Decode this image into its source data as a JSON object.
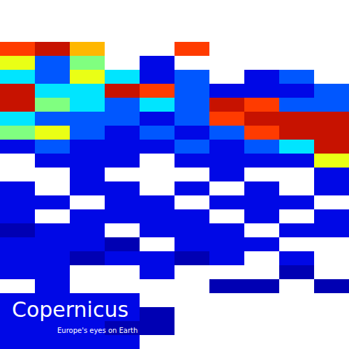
{
  "chart_data": {
    "type": "heatmap",
    "annotations": [
      "Copernicus",
      "Europe's eyes on Earth"
    ],
    "tick_labels": false,
    "zlim": [
      0,
      10
    ],
    "cells": [
      [
        null,
        null,
        null,
        null,
        null,
        null,
        null,
        null,
        null,
        null
      ],
      [
        null,
        null,
        null,
        null,
        null,
        null,
        null,
        null,
        null,
        null
      ],
      [
        null,
        null,
        null,
        null,
        null,
        null,
        null,
        null,
        null,
        null
      ],
      [
        8,
        9,
        7,
        null,
        null,
        8,
        null,
        null,
        null,
        null
      ],
      [
        6,
        3,
        5,
        null,
        2,
        null,
        null,
        null,
        null,
        null
      ],
      [
        4,
        3,
        6,
        4,
        2,
        3,
        null,
        2,
        3,
        null
      ],
      [
        9,
        4,
        4,
        9,
        8,
        3,
        2,
        2,
        2,
        3
      ],
      [
        9,
        5,
        4,
        3,
        4,
        3,
        9,
        8,
        3,
        3
      ],
      [
        4,
        3,
        3,
        3,
        2,
        3,
        8,
        9,
        9,
        9
      ],
      [
        5,
        6,
        3,
        2,
        3,
        2,
        3,
        8,
        9,
        9
      ],
      [
        2,
        3,
        2,
        2,
        2,
        3,
        2,
        3,
        4,
        9
      ],
      [
        null,
        2,
        2,
        2,
        null,
        2,
        2,
        2,
        2,
        6
      ],
      [
        null,
        null,
        2,
        null,
        null,
        null,
        2,
        null,
        null,
        2
      ],
      [
        2,
        null,
        2,
        2,
        null,
        2,
        null,
        2,
        null,
        2
      ],
      [
        2,
        2,
        null,
        2,
        2,
        null,
        2,
        2,
        2,
        null
      ],
      [
        2,
        null,
        2,
        2,
        2,
        2,
        null,
        2,
        null,
        2
      ],
      [
        1,
        2,
        2,
        null,
        2,
        2,
        2,
        null,
        2,
        2
      ],
      [
        2,
        2,
        2,
        1,
        null,
        2,
        2,
        2,
        null,
        null
      ],
      [
        2,
        2,
        1,
        2,
        2,
        1,
        2,
        null,
        2,
        null
      ],
      [
        2,
        2,
        null,
        null,
        2,
        null,
        null,
        null,
        1,
        null
      ],
      [
        null,
        2,
        null,
        null,
        null,
        null,
        1,
        1,
        null,
        1
      ],
      [
        2,
        2,
        2,
        2,
        null,
        null,
        null,
        null,
        null,
        null
      ],
      [
        2,
        2,
        2,
        2,
        1,
        null,
        null,
        null,
        null,
        null
      ],
      [
        2,
        2,
        2,
        1,
        1,
        null,
        null,
        null,
        null,
        null
      ],
      [
        2,
        2,
        2,
        2,
        null,
        null,
        null,
        null,
        null,
        null
      ]
    ]
  }
}
